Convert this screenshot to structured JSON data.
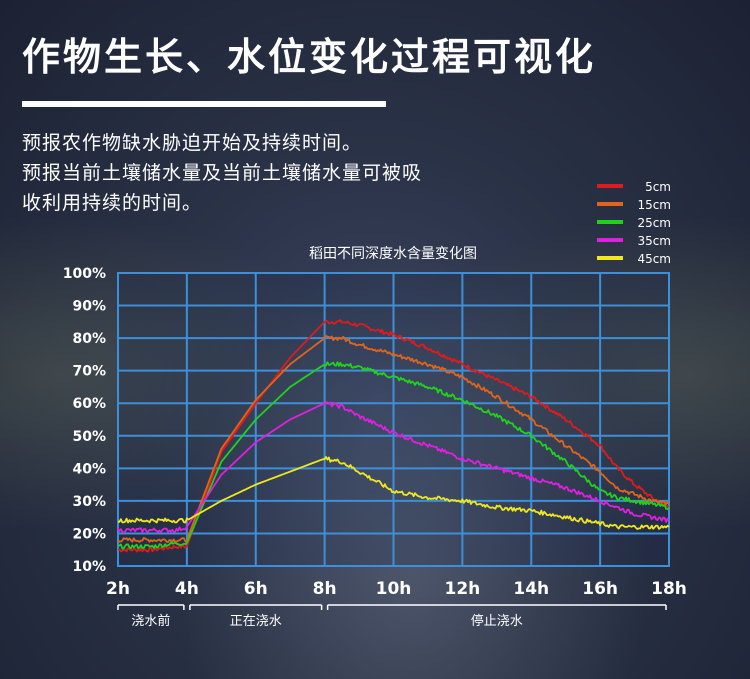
{
  "header": {
    "title": "作物生长、水位变化过程可视化",
    "desc_lines": [
      "预报农作物缺水胁迫开始及持续时间。",
      "预报当前土壤储水量及当前土壤储水量可被吸",
      "收利用持续的时间。"
    ]
  },
  "chart_data": {
    "type": "line",
    "title": "稻田不同深度水含量变化图",
    "xlabel": "",
    "ylabel": "",
    "xlim": [
      2,
      18
    ],
    "ylim": [
      10,
      100
    ],
    "grid": true,
    "legend_position": "top-right",
    "x_ticks": [
      "2h",
      "4h",
      "6h",
      "8h",
      "10h",
      "12h",
      "14h",
      "16h",
      "18h"
    ],
    "y_ticks": [
      "10%",
      "20%",
      "30%",
      "40%",
      "50%",
      "60%",
      "70%",
      "80%",
      "90%",
      "100%"
    ],
    "phases": [
      {
        "label": "浇水前",
        "from": 2,
        "to": 4
      },
      {
        "label": "正在浇水",
        "from": 4,
        "to": 8
      },
      {
        "label": "停止浇水",
        "from": 8,
        "to": 18
      }
    ],
    "series": [
      {
        "name": "5cm",
        "color": "#e01b1b",
        "x": [
          2,
          3,
          3.7,
          4,
          5,
          6,
          7,
          8,
          8.5,
          9,
          10,
          11,
          12,
          13,
          14,
          15,
          16,
          16.5,
          17,
          17.5,
          18
        ],
        "y": [
          15,
          15,
          16,
          16,
          45,
          60,
          74,
          85,
          85,
          84,
          81,
          77,
          72,
          67,
          62,
          55,
          47,
          40,
          35,
          31,
          28
        ]
      },
      {
        "name": "15cm",
        "color": "#e0641b",
        "x": [
          2,
          3,
          3.7,
          4,
          5,
          6,
          7,
          8,
          8.5,
          9,
          10,
          11,
          12,
          13,
          14,
          15,
          16,
          16.5,
          17,
          17.5,
          18
        ],
        "y": [
          18,
          18,
          18,
          18,
          46,
          61,
          72,
          80,
          80,
          78,
          75,
          72,
          68,
          62,
          55,
          47,
          39,
          34,
          32,
          30,
          29
        ]
      },
      {
        "name": "25cm",
        "color": "#22d11c",
        "x": [
          2,
          3,
          3.7,
          4,
          5,
          6,
          7,
          8,
          8.5,
          9,
          10,
          11,
          12,
          13,
          14,
          15,
          16,
          16.5,
          17,
          17.5,
          18
        ],
        "y": [
          16,
          16,
          17,
          17,
          42,
          55,
          65,
          72,
          72,
          71,
          68,
          65,
          61,
          56,
          50,
          42,
          33,
          31,
          30,
          29,
          28
        ]
      },
      {
        "name": "35cm",
        "color": "#e020e0",
        "x": [
          2,
          3,
          3.7,
          4,
          5,
          6,
          7,
          8,
          8.5,
          9,
          10,
          11,
          12,
          13,
          14,
          15,
          16,
          16.5,
          17,
          17.5,
          18
        ],
        "y": [
          21,
          21,
          21,
          22,
          38,
          48,
          55,
          60,
          59,
          56,
          51,
          47,
          43,
          40,
          37,
          34,
          30,
          28,
          26,
          25,
          24
        ]
      },
      {
        "name": "45cm",
        "color": "#f0e81c",
        "x": [
          2,
          3,
          3.7,
          4,
          5,
          6,
          7,
          8,
          8.5,
          9,
          10,
          11,
          12,
          13,
          14,
          15,
          16,
          16.5,
          17,
          17.5,
          18
        ],
        "y": [
          24,
          24,
          24,
          24,
          30,
          35,
          39,
          43,
          42,
          39,
          33,
          31,
          30,
          28,
          27,
          25,
          23,
          22,
          22,
          22,
          22
        ]
      }
    ]
  }
}
